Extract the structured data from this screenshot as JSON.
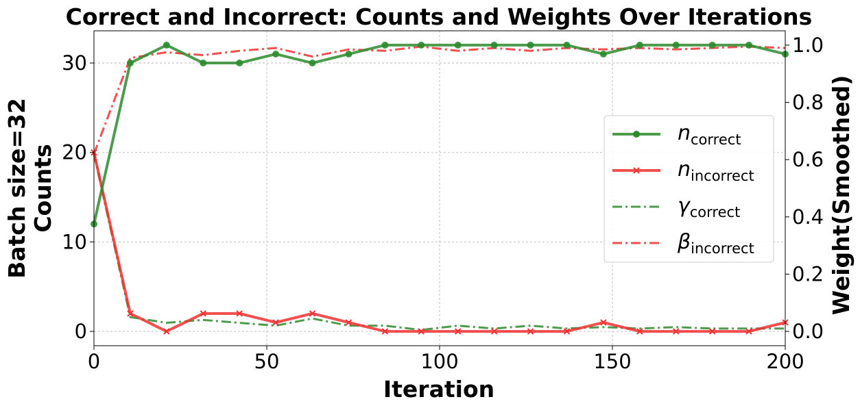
{
  "chart_data": {
    "type": "line",
    "title": "Correct and Incorrect: Counts and Weights Over Iterations",
    "xlabel": "Iteration",
    "ylabel_left_line1": "Batch size=32",
    "ylabel_left_line2": "Counts",
    "ylabel_right": "Weight(Smoothed)",
    "xlim": [
      0,
      200
    ],
    "ylim_left": [
      -1.6,
      33.6
    ],
    "ylim_right": [
      -0.05,
      1.05
    ],
    "x_ticks": [
      0,
      50,
      100,
      150,
      200
    ],
    "y_ticks_left": [
      0,
      10,
      20,
      30
    ],
    "y_ticks_right": [
      0.0,
      0.2,
      0.4,
      0.6,
      0.8,
      1.0
    ],
    "grid": true,
    "legend_position": "center-right",
    "x": [
      0,
      10.5,
      21,
      31.6,
      42.1,
      52.6,
      63.2,
      73.7,
      84.2,
      94.7,
      105.3,
      115.8,
      126.3,
      136.8,
      147.4,
      157.9,
      168.4,
      178.9,
      189.5,
      200
    ],
    "series": [
      {
        "key": "n_correct",
        "symbol": "n",
        "subscript": "correct",
        "axis": "left",
        "style": "solid",
        "marker": "circle",
        "color": "#2e8b2e",
        "values": [
          12,
          30,
          32,
          30,
          30,
          31,
          30,
          31,
          32,
          32,
          32,
          32,
          32,
          32,
          31,
          32,
          32,
          32,
          32,
          31
        ]
      },
      {
        "key": "n_incorrect",
        "symbol": "n",
        "subscript": "incorrect",
        "axis": "left",
        "style": "solid",
        "marker": "x",
        "color": "#f03030",
        "values": [
          20,
          2,
          0,
          2,
          2,
          1,
          2,
          1,
          0,
          0,
          0,
          0,
          0,
          0,
          1,
          0,
          0,
          0,
          0,
          1
        ]
      },
      {
        "key": "gamma_correct",
        "symbol": "γ",
        "subscript": "correct",
        "axis": "right",
        "style": "dashdot",
        "marker": "none",
        "color": "#2e8b2e",
        "values": [
          0.62,
          0.05,
          0.03,
          0.04,
          0.03,
          0.02,
          0.045,
          0.02,
          0.02,
          0.005,
          0.02,
          0.01,
          0.02,
          0.01,
          0.015,
          0.01,
          0.015,
          0.01,
          0.01,
          0.01
        ]
      },
      {
        "key": "beta_incorrect",
        "symbol": "β",
        "subscript": "incorrect",
        "axis": "right",
        "style": "dashdot",
        "marker": "none",
        "color": "#f03030",
        "values": [
          0.62,
          0.955,
          0.975,
          0.965,
          0.98,
          0.99,
          0.96,
          0.985,
          0.98,
          0.995,
          0.98,
          0.99,
          0.98,
          0.99,
          0.985,
          0.99,
          0.985,
          0.99,
          0.995,
          0.99
        ]
      }
    ]
  }
}
